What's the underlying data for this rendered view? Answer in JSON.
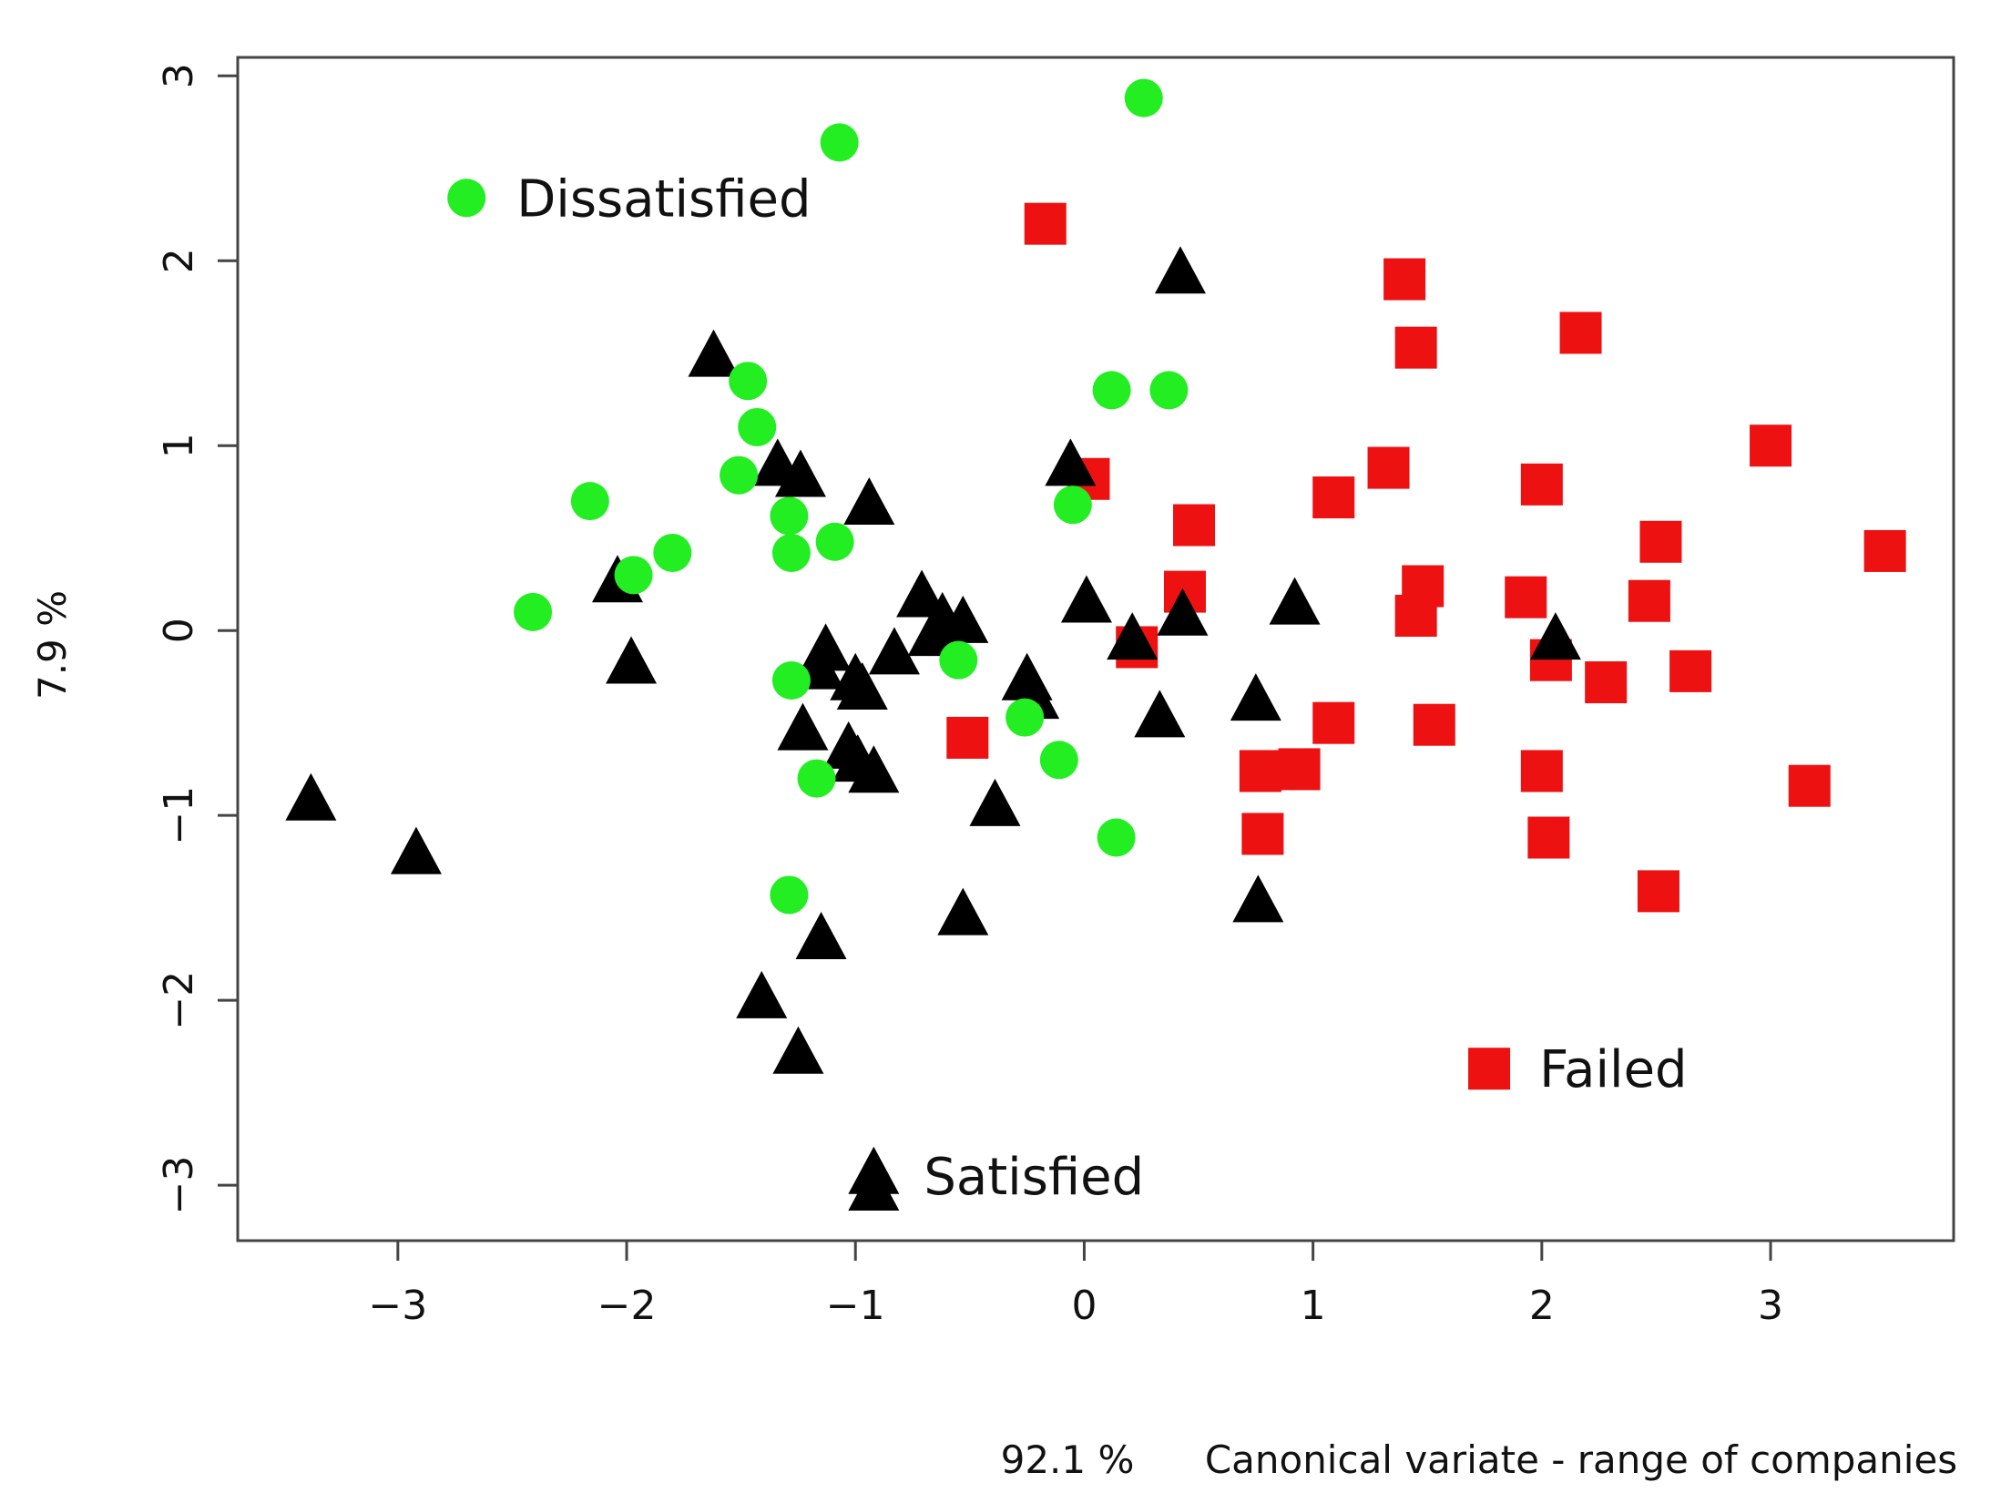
{
  "chart_data": {
    "type": "scatter",
    "xlabel_pct": "92.1 %",
    "xlabel": "Canonical variate - range of companies",
    "ylabel": "7.9 %",
    "xlim": [
      -3.7,
      3.8
    ],
    "ylim": [
      -3.3,
      3.1
    ],
    "xticks": [
      "-3",
      "-2",
      "-1",
      "0",
      "1",
      "2",
      "3"
    ],
    "yticks": [
      "-3",
      "-2",
      "-1",
      "0",
      "1",
      "2",
      "3"
    ],
    "grid": false,
    "colors": {
      "Dissatisfied": "#22ee22",
      "Satisfied": "#000000",
      "Failed": "#ee1111"
    },
    "legend": [
      {
        "name": "Dissatisfied",
        "marker": "circle",
        "x": -2.7,
        "y": 2.34
      },
      {
        "name": "Failed",
        "marker": "square",
        "x": 1.77,
        "y": -2.37
      },
      {
        "name": "Satisfied",
        "marker": "triangle",
        "x": -0.92,
        "y": -2.95
      }
    ],
    "series": [
      {
        "name": "Dissatisfied",
        "marker": "circle",
        "points": [
          [
            0.26,
            2.88
          ],
          [
            -1.07,
            2.64
          ],
          [
            0.12,
            1.3
          ],
          [
            0.37,
            1.3
          ],
          [
            -1.47,
            1.35
          ],
          [
            -1.43,
            1.1
          ],
          [
            -1.51,
            0.84
          ],
          [
            -2.16,
            0.7
          ],
          [
            -1.29,
            0.62
          ],
          [
            -1.28,
            0.42
          ],
          [
            -1.09,
            0.48
          ],
          [
            -1.8,
            0.42
          ],
          [
            -1.97,
            0.3
          ],
          [
            -2.41,
            0.1
          ],
          [
            -0.05,
            0.68
          ],
          [
            -0.55,
            -0.16
          ],
          [
            -1.28,
            -0.27
          ],
          [
            -0.26,
            -0.47
          ],
          [
            -0.11,
            -0.7
          ],
          [
            -1.17,
            -0.8
          ],
          [
            0.14,
            -1.12
          ],
          [
            -1.29,
            -1.43
          ]
        ]
      },
      {
        "name": "Satisfied",
        "marker": "triangle",
        "points": [
          [
            0.42,
            1.92
          ],
          [
            -1.62,
            1.47
          ],
          [
            -1.34,
            0.88
          ],
          [
            -1.24,
            0.82
          ],
          [
            -0.94,
            0.67
          ],
          [
            -0.06,
            0.88
          ],
          [
            -2.04,
            0.25
          ],
          [
            -1.98,
            -0.19
          ],
          [
            -0.71,
            0.17
          ],
          [
            -0.62,
            0.05
          ],
          [
            -0.53,
            0.03
          ],
          [
            -0.66,
            -0.04
          ],
          [
            -1.13,
            -0.12
          ],
          [
            -0.83,
            -0.14
          ],
          [
            -1.16,
            -0.22
          ],
          [
            -1.0,
            -0.28
          ],
          [
            -0.97,
            -0.33
          ],
          [
            -1.23,
            -0.55
          ],
          [
            -1.03,
            -0.65
          ],
          [
            -0.99,
            -0.72
          ],
          [
            -0.92,
            -0.78
          ],
          [
            -0.25,
            -0.28
          ],
          [
            -0.22,
            -0.38
          ],
          [
            0.01,
            0.14
          ],
          [
            0.21,
            -0.06
          ],
          [
            0.43,
            0.07
          ],
          [
            0.33,
            -0.48
          ],
          [
            0.92,
            0.13
          ],
          [
            0.75,
            -0.39
          ],
          [
            2.06,
            -0.06
          ],
          [
            -0.39,
            -0.96
          ],
          [
            -3.38,
            -0.93
          ],
          [
            -2.92,
            -1.22
          ],
          [
            -0.53,
            -1.55
          ],
          [
            0.76,
            -1.48
          ],
          [
            -1.15,
            -1.68
          ],
          [
            -1.41,
            -2.0
          ],
          [
            -1.25,
            -2.3
          ],
          [
            -0.92,
            -3.04
          ]
        ]
      },
      {
        "name": "Failed",
        "marker": "square",
        "points": [
          [
            -0.17,
            2.2
          ],
          [
            1.4,
            1.9
          ],
          [
            2.17,
            1.61
          ],
          [
            1.45,
            1.53
          ],
          [
            3.0,
            1.0
          ],
          [
            1.33,
            0.88
          ],
          [
            0.02,
            0.82
          ],
          [
            1.09,
            0.72
          ],
          [
            2.0,
            0.79
          ],
          [
            0.48,
            0.57
          ],
          [
            2.52,
            0.48
          ],
          [
            3.5,
            0.43
          ],
          [
            0.44,
            0.21
          ],
          [
            1.48,
            0.24
          ],
          [
            1.93,
            0.18
          ],
          [
            2.47,
            0.16
          ],
          [
            1.45,
            0.08
          ],
          [
            0.23,
            -0.09
          ],
          [
            2.04,
            -0.16
          ],
          [
            2.28,
            -0.28
          ],
          [
            2.65,
            -0.22
          ],
          [
            1.09,
            -0.5
          ],
          [
            1.53,
            -0.51
          ],
          [
            -0.51,
            -0.58
          ],
          [
            0.77,
            -0.76
          ],
          [
            0.94,
            -0.75
          ],
          [
            2.0,
            -0.76
          ],
          [
            3.17,
            -0.84
          ],
          [
            0.78,
            -1.1
          ],
          [
            2.03,
            -1.12
          ],
          [
            2.51,
            -1.41
          ]
        ]
      }
    ]
  }
}
